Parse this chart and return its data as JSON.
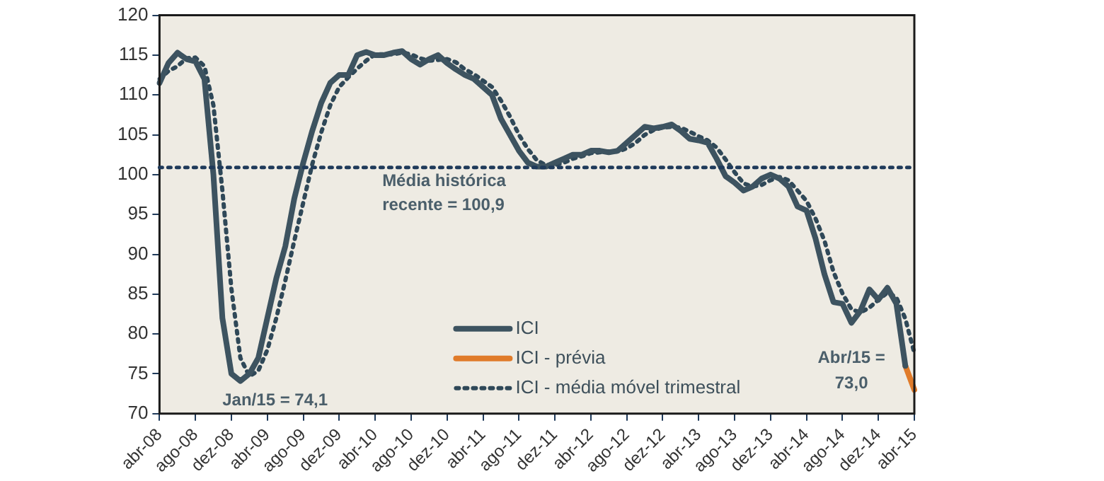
{
  "chart_data": {
    "type": "line",
    "categories": [
      "abr-08",
      null,
      null,
      null,
      "ago-08",
      null,
      null,
      null,
      "dez-08",
      null,
      null,
      null,
      "abr-09",
      null,
      null,
      null,
      "ago-09",
      null,
      null,
      null,
      "dez-09",
      null,
      null,
      null,
      "abr-10",
      null,
      null,
      null,
      "ago-10",
      null,
      null,
      null,
      "dez-10",
      null,
      null,
      null,
      "abr-11",
      null,
      null,
      null,
      "ago-11",
      null,
      null,
      null,
      "dez-11",
      null,
      null,
      null,
      "abr-12",
      null,
      null,
      null,
      "ago-12",
      null,
      null,
      null,
      "dez-12",
      null,
      null,
      null,
      "abr-13",
      null,
      null,
      null,
      "ago-13",
      null,
      null,
      null,
      "dez-13",
      null,
      null,
      null,
      "abr-14",
      null,
      null,
      null,
      "ago-14",
      null,
      null,
      null,
      "dez-14",
      null,
      null,
      null,
      "abr-15"
    ],
    "series": [
      {
        "name": "ICI",
        "color": "#3d5360",
        "line_style": "solid",
        "values": [
          111.5,
          114,
          115.3,
          114.5,
          114.2,
          112,
          100,
          82,
          75,
          74.1,
          75,
          77,
          82,
          87,
          91,
          97,
          101.5,
          105.5,
          109,
          111.5,
          112.5,
          112.5,
          115,
          115.4,
          115,
          115,
          115.3,
          115.5,
          114.5,
          113.8,
          114.5,
          115,
          114,
          113.2,
          112.5,
          112,
          111,
          110,
          107,
          105,
          103,
          101.5,
          101,
          101,
          101.5,
          102,
          102.5,
          102.5,
          103,
          103,
          102.8,
          103,
          104,
          105,
          106,
          105.8,
          106,
          106.3,
          105.5,
          104.5,
          104.3,
          104,
          102,
          99.8,
          99,
          98,
          98.5,
          99.5,
          100,
          99.5,
          98.5,
          96,
          95.5,
          92,
          87.5,
          84,
          83.8,
          81.4,
          82.9,
          85.6,
          84.3,
          85.8,
          83.8,
          76,
          null
        ]
      },
      {
        "name": "ICI - prévia",
        "color": "#e07b2a",
        "line_style": "solid",
        "values": [
          null,
          null,
          null,
          null,
          null,
          null,
          null,
          null,
          null,
          null,
          null,
          null,
          null,
          null,
          null,
          null,
          null,
          null,
          null,
          null,
          null,
          null,
          null,
          null,
          null,
          null,
          null,
          null,
          null,
          null,
          null,
          null,
          null,
          null,
          null,
          null,
          null,
          null,
          null,
          null,
          null,
          null,
          null,
          null,
          null,
          null,
          null,
          null,
          null,
          null,
          null,
          null,
          null,
          null,
          null,
          null,
          null,
          null,
          null,
          null,
          null,
          null,
          null,
          null,
          null,
          null,
          null,
          null,
          null,
          null,
          null,
          null,
          null,
          null,
          null,
          null,
          null,
          null,
          null,
          null,
          null,
          null,
          null,
          76,
          73.0
        ]
      },
      {
        "name": "ICI - média móvel trimestral",
        "color": "#2f4858",
        "line_style": "dotted",
        "values": [
          112,
          113,
          113.6,
          114.6,
          114.7,
          113.6,
          108.7,
          98,
          85.7,
          77,
          74.7,
          75.4,
          78,
          82,
          86.7,
          91.7,
          96.5,
          101.3,
          105.3,
          108.7,
          111,
          112.2,
          113.3,
          114.3,
          115.1,
          115.1,
          115.1,
          115.3,
          115.1,
          114.6,
          114.3,
          114.4,
          114.5,
          114.1,
          113.2,
          112.6,
          111.8,
          111,
          109.3,
          107.3,
          105,
          103.2,
          101.8,
          101.2,
          101.2,
          101.5,
          102,
          102.3,
          102.7,
          102.8,
          102.9,
          102.9,
          103.3,
          104,
          105,
          105.6,
          105.9,
          106,
          105.9,
          105.4,
          104.8,
          104.3,
          103.4,
          101.9,
          100.3,
          98.9,
          98.5,
          98.7,
          99.3,
          99.7,
          99.3,
          98,
          96.7,
          94.5,
          91.7,
          87.8,
          85.1,
          83.1,
          82.7,
          83.3,
          84.3,
          85.2,
          84.6,
          81.9,
          77.6
        ]
      }
    ],
    "ylim": [
      70,
      120
    ],
    "yticks": [
      70,
      75,
      80,
      85,
      90,
      95,
      100,
      105,
      110,
      115,
      120
    ],
    "grid": false,
    "legend": "bottom",
    "marker": "none",
    "ref_lines": [
      {
        "axis": "y",
        "value": 100.9,
        "label": "Média histórica recente = 100,9",
        "color": "#1f3a5a",
        "line_style": "dotted"
      }
    ],
    "annotations": [
      "Jan/15 = 74,1",
      "Abr/15 = 73,0"
    ]
  }
}
